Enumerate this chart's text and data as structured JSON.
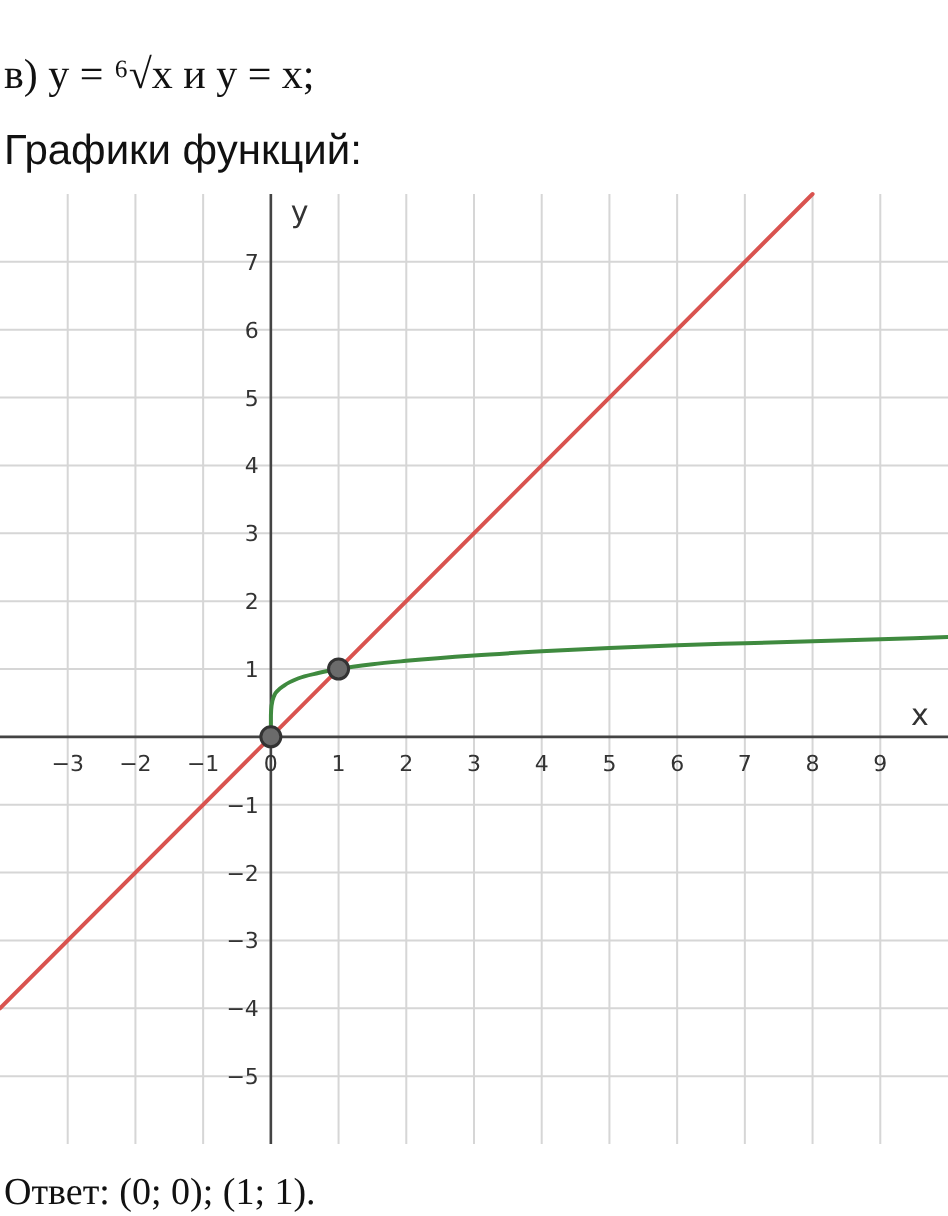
{
  "chart_data": {
    "type": "line",
    "title": "в) y = ⁶√x  и  y = x;",
    "subtitle": "Графики функций:",
    "xlabel": "x",
    "ylabel": "y",
    "xlim": [
      -4,
      10
    ],
    "ylim": [
      -6,
      8
    ],
    "xticks": [
      -3,
      -2,
      -1,
      0,
      1,
      2,
      3,
      4,
      5,
      6,
      7,
      8,
      9
    ],
    "yticks": [
      -5,
      -4,
      -3,
      -2,
      -1,
      1,
      2,
      3,
      4,
      5,
      6,
      7
    ],
    "grid": true,
    "line_style": "solid",
    "series": [
      {
        "color": "#d9534f",
        "x": [
          -4,
          8
        ],
        "values": [
          -4,
          8
        ],
        "marker": "none"
      },
      {
        "color": "#3f8a3f",
        "x": [
          0,
          0.001,
          0.01,
          0.05,
          0.1,
          0.2,
          0.4,
          0.7,
          1,
          1.5,
          2,
          3,
          4,
          5,
          6,
          7,
          8,
          9,
          10
        ],
        "values": [
          0,
          0.32,
          0.46,
          0.61,
          0.68,
          0.76,
          0.86,
          0.94,
          1,
          1.07,
          1.12,
          1.2,
          1.26,
          1.31,
          1.35,
          1.38,
          1.41,
          1.44,
          1.47
        ],
        "marker": "none"
      },
      {
        "type": "scatter",
        "color": "#6b6b6b",
        "x": [
          0,
          1
        ],
        "values": [
          0,
          1
        ],
        "marker": "circle"
      }
    ],
    "annotations": [
      "Ответ: (0; 0); (1; 1)."
    ]
  }
}
